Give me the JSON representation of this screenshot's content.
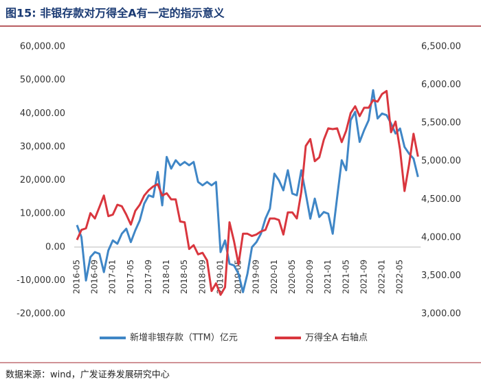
{
  "chart_data": {
    "type": "line",
    "title": "图15:  非银存款对万得全A有一定的指示意义",
    "source": "数据来源：wind，广发证券发展研究中心",
    "categories": [
      "2016-05",
      null,
      null,
      null,
      "2016-09",
      null,
      null,
      null,
      "2017-01",
      null,
      null,
      null,
      "2017-05",
      null,
      null,
      null,
      "2017-09",
      null,
      null,
      null,
      "2018-01",
      null,
      null,
      null,
      "2018-05",
      null,
      null,
      null,
      "2018-09",
      null,
      null,
      null,
      "2019-01",
      null,
      null,
      null,
      "2019-05",
      null,
      null,
      null,
      "2019-09",
      null,
      null,
      null,
      "2020-01",
      null,
      null,
      null,
      "2020-05",
      null,
      null,
      null,
      "2020-09",
      null,
      null,
      null,
      "2021-01",
      null,
      null,
      null,
      "2021-05",
      null,
      null,
      null,
      "2021-09",
      null,
      null,
      null,
      "2022-01",
      null,
      null,
      null,
      "2022-05",
      null,
      null,
      null,
      null
    ],
    "series": [
      {
        "name": "新增非银存款（TTM）亿元",
        "color": "#3f86c6",
        "values": [
          6600,
          3000,
          -10000,
          -3000,
          -1500,
          -2000,
          -7500,
          -1000,
          2000,
          1000,
          4000,
          5500,
          1500,
          5000,
          8000,
          13000,
          15500,
          15000,
          22500,
          12500,
          27000,
          23500,
          26000,
          24500,
          25500,
          24500,
          25500,
          19500,
          18500,
          19500,
          18500,
          19500,
          -1500,
          2000,
          -5000,
          -5500,
          -8000,
          -13500,
          -8000,
          0,
          1500,
          4000,
          8500,
          11500,
          22000,
          20000,
          17000,
          23000,
          16000,
          15500,
          23000,
          16000,
          8500,
          14500,
          9000,
          10500,
          10000,
          4000,
          15000,
          26000,
          23000,
          38000,
          40500,
          31500,
          35000,
          38000,
          47000,
          38500,
          40000,
          39500,
          37000,
          34000,
          35500,
          30000,
          28000,
          26500,
          21000
        ]
      },
      {
        "name": "万得全A 右轴点",
        "color": "#d9363e",
        "axis": "y2",
        "values": [
          3970,
          4100,
          4120,
          4320,
          4250,
          4400,
          4550,
          4280,
          4300,
          4430,
          4410,
          4300,
          4170,
          4350,
          4430,
          4550,
          4620,
          4670,
          4700,
          4550,
          4580,
          4500,
          4500,
          4210,
          4200,
          3850,
          3900,
          3780,
          3800,
          3700,
          3300,
          3400,
          3250,
          3350,
          4200,
          3950,
          3650,
          4050,
          4050,
          4020,
          4040,
          4080,
          4100,
          4250,
          4250,
          4230,
          4040,
          4330,
          4330,
          4250,
          4600,
          5200,
          5290,
          5000,
          5050,
          5280,
          5430,
          5420,
          5430,
          5250,
          5400,
          5630,
          5720,
          5590,
          5700,
          5700,
          5800,
          5780,
          5880,
          5920,
          5380,
          5520,
          5150,
          4610,
          4950,
          5360,
          5060
        ]
      }
    ],
    "ylim": [
      -20000,
      60000
    ],
    "yticks": [
      {
        "value": -20000,
        "label": "-20,000.00"
      },
      {
        "value": -10000,
        "label": "-10,000.00"
      },
      {
        "value": 0,
        "label": "0.00"
      },
      {
        "value": 10000,
        "label": "10,000.00"
      },
      {
        "value": 20000,
        "label": "20,000.00"
      },
      {
        "value": 30000,
        "label": "30,000.00"
      },
      {
        "value": 40000,
        "label": "40,000.00"
      },
      {
        "value": 50000,
        "label": "50,000.00"
      },
      {
        "value": 60000,
        "label": "60,000.00"
      }
    ],
    "y2lim": [
      3000,
      6500
    ],
    "y2ticks": [
      {
        "value": 3000,
        "label": "3,000.00"
      },
      {
        "value": 3500,
        "label": "3,500.00"
      },
      {
        "value": 4000,
        "label": "4,000.00"
      },
      {
        "value": 4500,
        "label": "4,500.00"
      },
      {
        "value": 5000,
        "label": "5,000.00"
      },
      {
        "value": 5500,
        "label": "5,500.00"
      },
      {
        "value": 6000,
        "label": "6,000.00"
      },
      {
        "value": 6500,
        "label": "6,500.00"
      }
    ],
    "grid": false
  }
}
